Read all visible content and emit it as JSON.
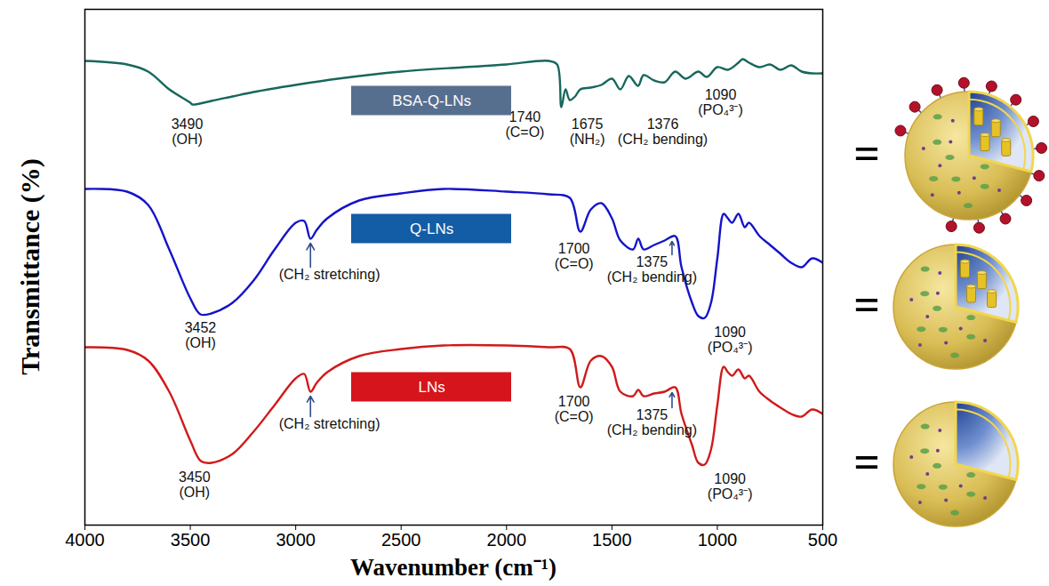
{
  "chart_data": {
    "type": "line",
    "x_label": "Wavenumber (cm⁻¹)",
    "y_label": "Transmittance (%)",
    "xlim": [
      4000,
      500
    ],
    "xticks": [
      4000,
      3500,
      3000,
      2500,
      2000,
      1500,
      1000,
      500
    ],
    "ylim": [
      0,
      116
    ],
    "tick_labels": "x",
    "grid": false,
    "equals_sign": "=",
    "series": [
      {
        "name": "BSA-Q-LNs",
        "color": "#17675c",
        "x": [
          4000,
          3800,
          3700,
          3600,
          3500,
          3490,
          3400,
          3300,
          3200,
          3000,
          2800,
          2500,
          2200,
          2000,
          1800,
          1760,
          1740,
          1720,
          1700,
          1675,
          1650,
          1600,
          1550,
          1500,
          1460,
          1420,
          1376,
          1350,
          1300,
          1250,
          1200,
          1150,
          1090,
          1050,
          1000,
          950,
          900,
          880,
          850,
          800,
          750,
          700,
          650,
          600,
          550,
          500
        ],
        "values": [
          104.4,
          103.6,
          102,
          98,
          95,
          94.6,
          95.4,
          96.4,
          97.4,
          99,
          100.4,
          102,
          103,
          103.6,
          104.4,
          103.6,
          94,
          98,
          95.6,
          96.4,
          98,
          98.4,
          99,
          100.4,
          98,
          101,
          98.8,
          101.2,
          100,
          99.6,
          102,
          100.4,
          102,
          100.8,
          103,
          102.4,
          104,
          104.8,
          104,
          103,
          103.6,
          102.4,
          103.4,
          102,
          101.6,
          101.6
        ],
        "annotations": [
          {
            "text": [
              "3490",
              "(OH)"
            ],
            "x": 3515,
            "y": 91.4
          },
          {
            "text": [
              "1740",
              "(C=O)"
            ],
            "x": 1913,
            "y": 93
          },
          {
            "text": [
              "1675",
              "(NH₂)"
            ],
            "x": 1617,
            "y": 91.4
          },
          {
            "text": [
              "1376",
              "(CH₂ bending)"
            ],
            "x": 1259,
            "y": 91.4
          },
          {
            "text": [
              "1090",
              "(PO₄³⁻)"
            ],
            "x": 985,
            "y": 98
          }
        ]
      },
      {
        "name": "Q-LNs",
        "color": "#1414c8",
        "x": [
          4000,
          3800,
          3700,
          3600,
          3500,
          3452,
          3400,
          3300,
          3200,
          3100,
          3000,
          2960,
          2930,
          2900,
          2850,
          2700,
          2500,
          2300,
          2000,
          1800,
          1700,
          1650,
          1600,
          1550,
          1500,
          1460,
          1400,
          1375,
          1350,
          1300,
          1250,
          1200,
          1170,
          1120,
          1090,
          1060,
          1030,
          1000,
          970,
          950,
          930,
          900,
          870,
          850,
          800,
          750,
          700,
          650,
          600,
          550,
          500
        ],
        "values": [
          75.6,
          75,
          72,
          62,
          51,
          47.4,
          47.6,
          50,
          55,
          62,
          68,
          68.4,
          64.4,
          66.4,
          69,
          73,
          74.6,
          75.6,
          75,
          74.4,
          73.6,
          66,
          71,
          72.4,
          69,
          64,
          62,
          64.4,
          62,
          63,
          64,
          65,
          58,
          50,
          47,
          46.6,
          50,
          60,
          70,
          69,
          68,
          70,
          67,
          68,
          65,
          63,
          61,
          59,
          58,
          60,
          59
        ],
        "annotations": [
          {
            "text": [
              "3452",
              "(OH)"
            ],
            "x": 3452,
            "y": 45.6
          },
          {
            "text": [
              "(CH₂ stretching)"
            ],
            "x": 2840,
            "y": 57.6,
            "points_to": {
              "x": 2930,
              "y": 63.4
            }
          },
          {
            "text": [
              "1700",
              "(C=O)"
            ],
            "x": 1680,
            "y": 63.4
          },
          {
            "text": [
              "1375",
              "(CH₂ bending)"
            ],
            "x": 1310,
            "y": 60.4,
            "points_to": {
              "x": 1215,
              "y": 63.8
            }
          },
          {
            "text": [
              "1090",
              "(PO₄³⁻)"
            ],
            "x": 940,
            "y": 44.6
          }
        ]
      },
      {
        "name": "LNs",
        "color": "#d11a1a",
        "x": [
          4000,
          3800,
          3700,
          3600,
          3500,
          3450,
          3400,
          3300,
          3200,
          3100,
          3000,
          2960,
          2930,
          2900,
          2850,
          2700,
          2500,
          2300,
          2000,
          1800,
          1700,
          1650,
          1600,
          1550,
          1500,
          1460,
          1400,
          1375,
          1350,
          1300,
          1250,
          1200,
          1170,
          1120,
          1090,
          1060,
          1030,
          1000,
          970,
          950,
          930,
          900,
          870,
          850,
          800,
          750,
          700,
          650,
          600,
          550,
          500
        ],
        "values": [
          40,
          39.4,
          37,
          30,
          19,
          14.4,
          14,
          16,
          21,
          27,
          33,
          34,
          30,
          32,
          34.4,
          38,
          39.6,
          40.4,
          40.4,
          40,
          39.6,
          31,
          37,
          38,
          35.6,
          30,
          29,
          30.4,
          29,
          29.6,
          30,
          31,
          25,
          18,
          14,
          13.6,
          17,
          27,
          35.6,
          34.4,
          33.6,
          35,
          33,
          33.6,
          30,
          28,
          26.4,
          25,
          24.4,
          26,
          25
        ],
        "annotations": [
          {
            "text": [
              "3450",
              "(OH)"
            ],
            "x": 3480,
            "y": 12
          },
          {
            "text": [
              "(CH₂ stretching)"
            ],
            "x": 2840,
            "y": 24,
            "points_to": {
              "x": 2930,
              "y": 29
            }
          },
          {
            "text": [
              "1700",
              "(C=O)"
            ],
            "x": 1680,
            "y": 29
          },
          {
            "text": [
              "1375",
              "(CH₂ bending)"
            ],
            "x": 1310,
            "y": 26,
            "points_to": {
              "x": 1215,
              "y": 29.8
            }
          },
          {
            "text": [
              "1090",
              "(PO₄³⁻)"
            ],
            "x": 940,
            "y": 11.6
          }
        ]
      }
    ]
  }
}
